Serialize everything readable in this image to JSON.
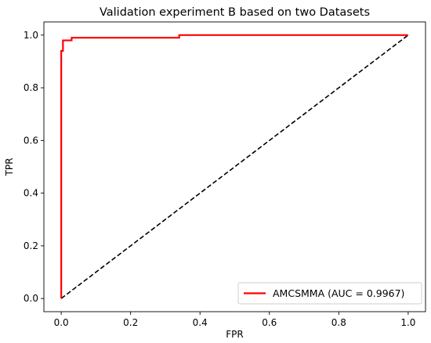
{
  "chart_data": {
    "type": "line",
    "title": "Validation experiment B based on two Datasets",
    "xlabel": "FPR",
    "ylabel": "TPR",
    "xlim": [
      -0.05,
      1.05
    ],
    "ylim": [
      -0.05,
      1.05
    ],
    "xticks": [
      {
        "value": 0.0,
        "label": "0.0"
      },
      {
        "value": 0.2,
        "label": "0.2"
      },
      {
        "value": 0.4,
        "label": "0.4"
      },
      {
        "value": 0.6,
        "label": "0.6"
      },
      {
        "value": 0.8,
        "label": "0.8"
      },
      {
        "value": 1.0,
        "label": "1.0"
      }
    ],
    "yticks": [
      {
        "value": 0.0,
        "label": "0.0"
      },
      {
        "value": 0.2,
        "label": "0.2"
      },
      {
        "value": 0.4,
        "label": "0.4"
      },
      {
        "value": 0.6,
        "label": "0.6"
      },
      {
        "value": 0.8,
        "label": "0.8"
      },
      {
        "value": 1.0,
        "label": "1.0"
      }
    ],
    "grid": false,
    "legend_position": "bottom-right",
    "series": [
      {
        "name": "AMCSMMA (AUC = 0.9967)",
        "color": "#ff0000",
        "style": "solid",
        "x": [
          0.0,
          0.0,
          0.005,
          0.005,
          0.01,
          0.01,
          0.03,
          0.03,
          0.34,
          0.34,
          1.0
        ],
        "y": [
          0.0,
          0.94,
          0.94,
          0.98,
          0.98,
          0.98,
          0.98,
          0.99,
          0.99,
          1.0,
          1.0
        ]
      },
      {
        "color": "#000000",
        "style": "dashed",
        "x": [
          0.0,
          1.0
        ],
        "y": [
          0.0,
          1.0
        ]
      }
    ]
  }
}
